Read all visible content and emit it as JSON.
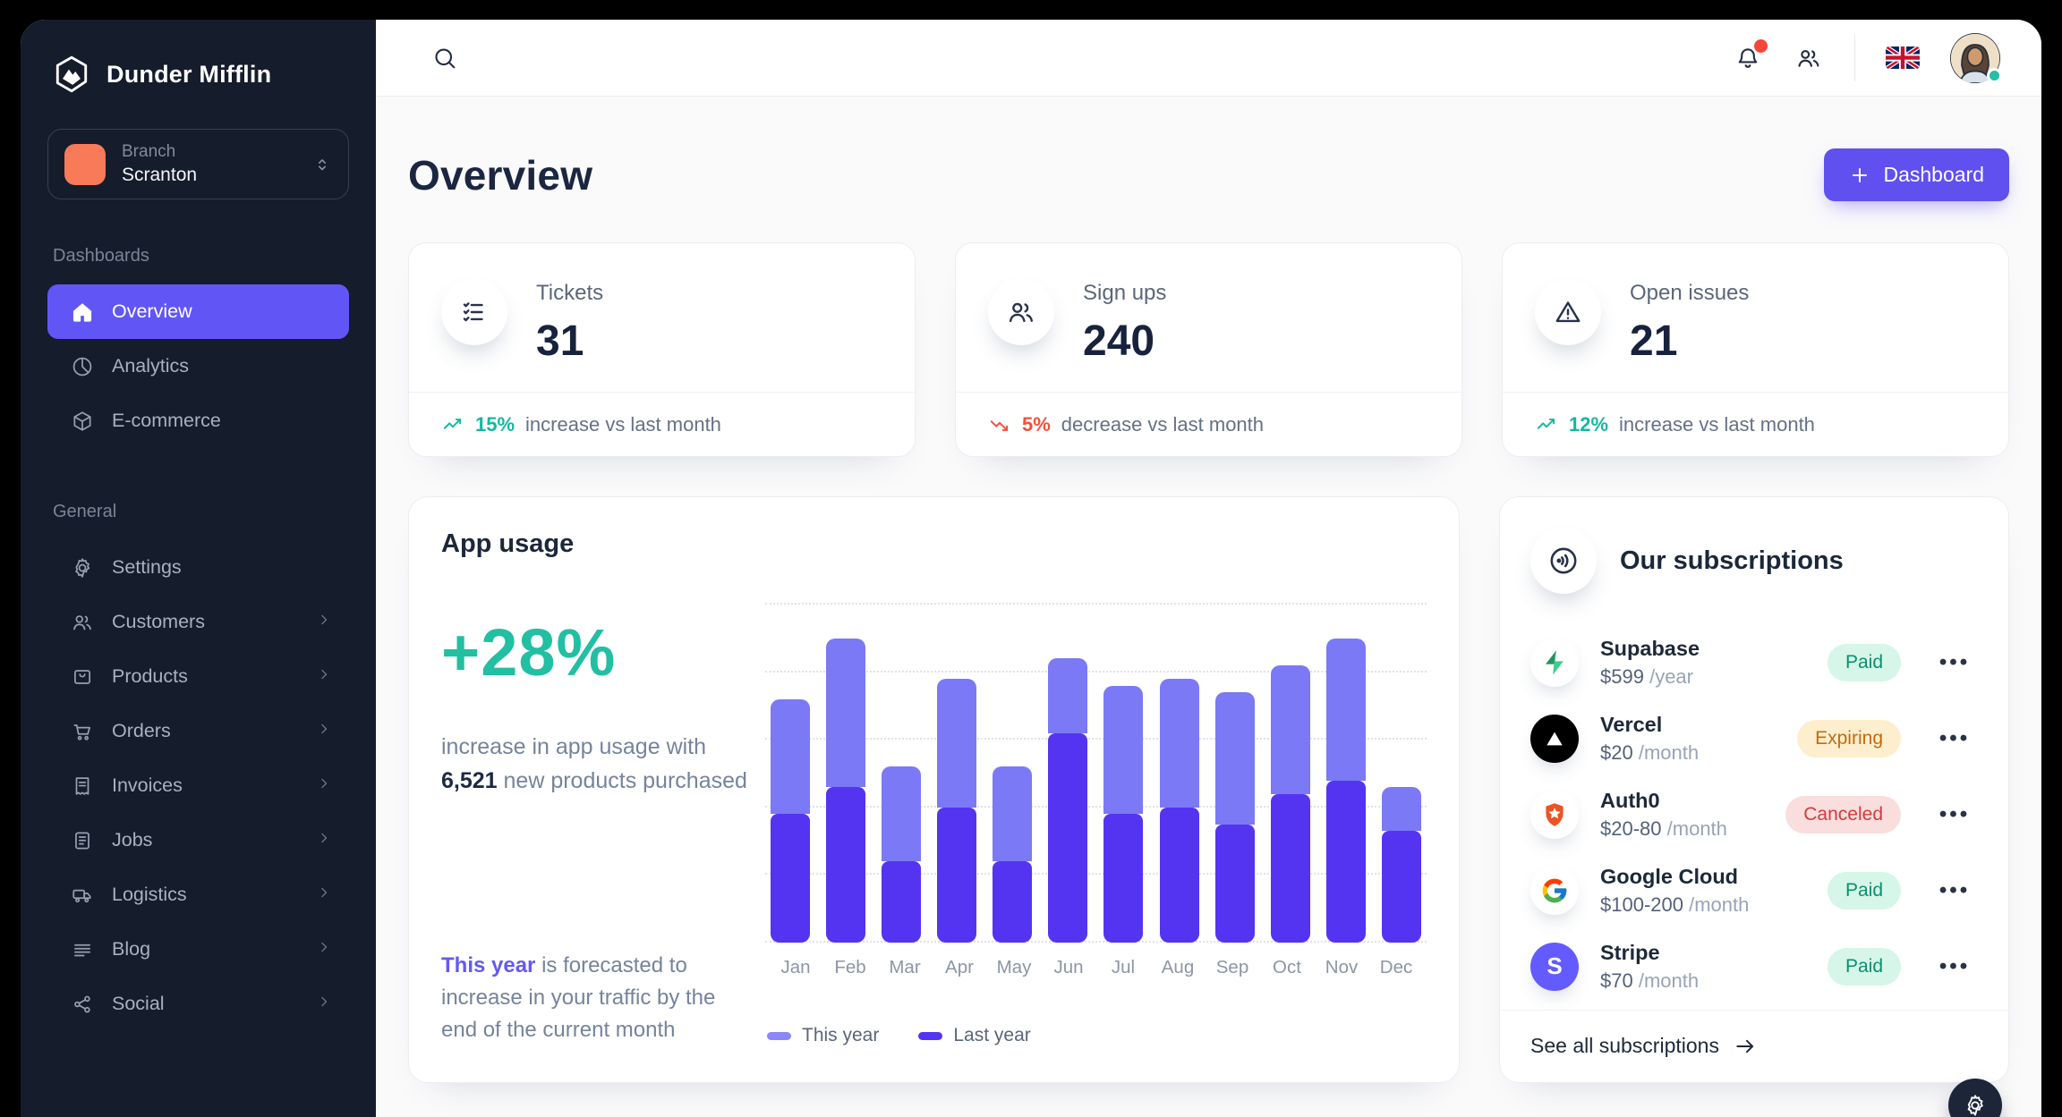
{
  "brand": {
    "name": "Dunder Mifflin"
  },
  "branch": {
    "label": "Branch",
    "value": "Scranton"
  },
  "sidebar": {
    "sections": [
      {
        "label": "Dashboards",
        "items": [
          {
            "label": "Overview"
          },
          {
            "label": "Analytics"
          },
          {
            "label": "E-commerce"
          }
        ]
      },
      {
        "label": "General",
        "items": [
          {
            "label": "Settings"
          },
          {
            "label": "Customers"
          },
          {
            "label": "Products"
          },
          {
            "label": "Orders"
          },
          {
            "label": "Invoices"
          },
          {
            "label": "Jobs"
          },
          {
            "label": "Logistics"
          },
          {
            "label": "Blog"
          },
          {
            "label": "Social"
          }
        ]
      }
    ]
  },
  "page": {
    "title": "Overview",
    "primary_button": "Dashboard"
  },
  "stats": [
    {
      "label": "Tickets",
      "value": "31",
      "icon": "checklist-icon",
      "trend": {
        "direction": "up",
        "percent": "15%",
        "text": "increase vs last month"
      }
    },
    {
      "label": "Sign ups",
      "value": "240",
      "icon": "users-icon",
      "trend": {
        "direction": "down",
        "percent": "5%",
        "text": "decrease vs last month"
      }
    },
    {
      "label": "Open issues",
      "value": "21",
      "icon": "warning-icon",
      "trend": {
        "direction": "up",
        "percent": "12%",
        "text": "increase vs last month"
      }
    }
  ],
  "app_usage": {
    "title": "App usage",
    "highlight": "+28%",
    "description": {
      "prefix": "increase in app usage with",
      "bold": "6,521",
      "suffix": "new products purchased"
    },
    "forecast": {
      "highlight": "This year",
      "text": "is forecasted to increase in your traffic by the end of the current month"
    },
    "chart_data": {
      "type": "bar",
      "stacked": true,
      "categories": [
        "Jan",
        "Feb",
        "Mar",
        "Apr",
        "May",
        "Jun",
        "Jul",
        "Aug",
        "Sep",
        "Oct",
        "Nov",
        "Dec"
      ],
      "series": [
        {
          "name": "Last year",
          "color": "#5434f1",
          "values": [
            38,
            46,
            24,
            40,
            24,
            62,
            38,
            40,
            35,
            44,
            48,
            33
          ]
        },
        {
          "name": "This year",
          "color": "#7b79f5",
          "values": [
            34,
            44,
            28,
            38,
            28,
            22,
            38,
            38,
            39,
            38,
            42,
            13
          ]
        }
      ],
      "ylim": [
        0,
        100
      ],
      "grid_step": 20,
      "grid": "dotted-horizontal",
      "legend_position": "bottom-left",
      "legend": [
        {
          "name": "This year",
          "color": "#8a87f8"
        },
        {
          "name": "Last year",
          "color": "#5434f1"
        }
      ]
    }
  },
  "subscriptions": {
    "title": "Our subscriptions",
    "items": [
      {
        "name": "Supabase",
        "price": "$599",
        "period": "/year",
        "status": "Paid"
      },
      {
        "name": "Vercel",
        "price": "$20",
        "period": "/month",
        "status": "Expiring"
      },
      {
        "name": "Auth0",
        "price": "$20-80",
        "period": "/month",
        "status": "Canceled"
      },
      {
        "name": "Google Cloud",
        "price": "$100-200",
        "period": "/month",
        "status": "Paid"
      },
      {
        "name": "Stripe",
        "price": "$70",
        "period": "/month",
        "status": "Paid"
      }
    ],
    "see_all": "See all subscriptions"
  },
  "colors": {
    "sidebar_bg": "#151c2b",
    "accent_purple": "#6156f5",
    "teal": "#22bfa2",
    "red": "#f4503a",
    "branch_swatch": "#f87a58",
    "paid_bg": "#d5f6e8",
    "paid_text": "#0c8f70",
    "expiring_bg": "#fdefcd",
    "expiring_text": "#c46a10",
    "canceled_bg": "#fadddd",
    "canceled_text": "#cf3d3d"
  }
}
